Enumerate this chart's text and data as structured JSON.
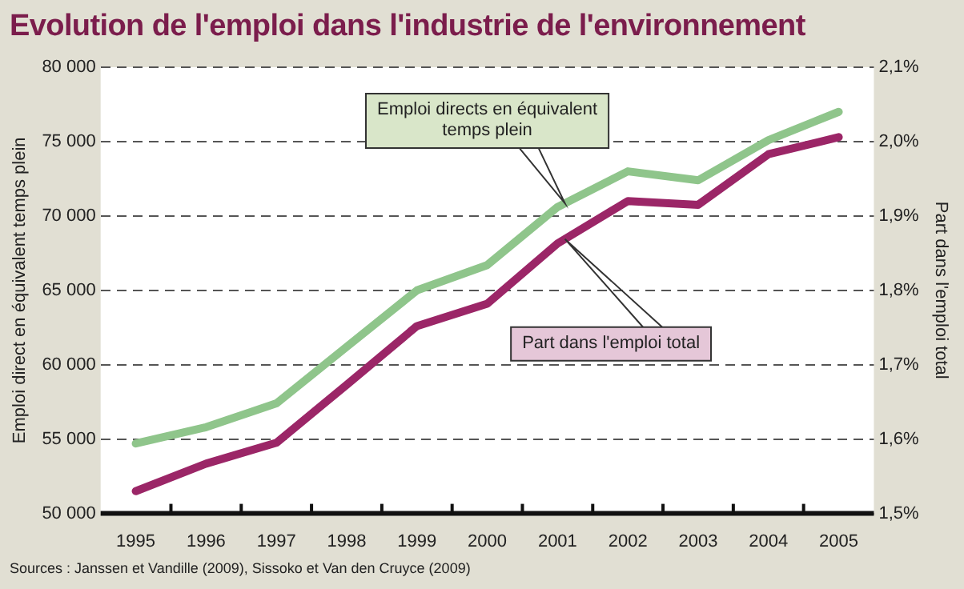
{
  "chart_data": {
    "type": "line",
    "title": "Evolution de l'emploi dans l'industrie de l'environnement",
    "ylabel": "Emploi direct en équivalent temps plein",
    "y2label": "Part dans l'emploi total",
    "annotations": [
      "Sources :  Janssen et Vandille (2009), Sissoko et Van den Cruyce (2009)"
    ],
    "categories": [
      "1995",
      "1996",
      "1997",
      "1998",
      "1999",
      "2000",
      "2001",
      "2002",
      "2003",
      "2004",
      "2005"
    ],
    "series": [
      {
        "name": "Emploi directs en équivalent temps plein",
        "color": "#8fc58b",
        "values": [
          54700,
          55800,
          57400,
          61200,
          65000,
          66700,
          70600,
          73000,
          72400,
          75100,
          77000
        ]
      },
      {
        "name": "Part dans l'emploi total",
        "color": "#9b2667",
        "axis": "y2",
        "values": [
          1.53,
          1.567,
          1.595,
          1.673,
          1.752,
          1.782,
          1.863,
          1.92,
          1.915,
          1.983,
          2.006
        ]
      }
    ],
    "ylim": [
      50000,
      80000
    ],
    "yticks": [
      {
        "value": 50000,
        "label": "50 000"
      },
      {
        "value": 55000,
        "label": "55 000"
      },
      {
        "value": 60000,
        "label": "60 000"
      },
      {
        "value": 65000,
        "label": "65 000"
      },
      {
        "value": 70000,
        "label": "70 000"
      },
      {
        "value": 75000,
        "label": "75 000"
      },
      {
        "value": 80000,
        "label": "80 000"
      }
    ],
    "y2lim": [
      1.5,
      2.1
    ],
    "y2ticks": [
      {
        "value": 1.5,
        "label": "1,5%"
      },
      {
        "value": 1.6,
        "label": "1,6%"
      },
      {
        "value": 1.7,
        "label": "1,7%"
      },
      {
        "value": 1.8,
        "label": "1,8%"
      },
      {
        "value": 1.9,
        "label": "1,9%"
      },
      {
        "value": 2.0,
        "label": "2,0%"
      },
      {
        "value": 2.1,
        "label": "2,1%"
      }
    ],
    "grid": "y",
    "legend": false,
    "marker": "none",
    "line_style": "solid"
  }
}
